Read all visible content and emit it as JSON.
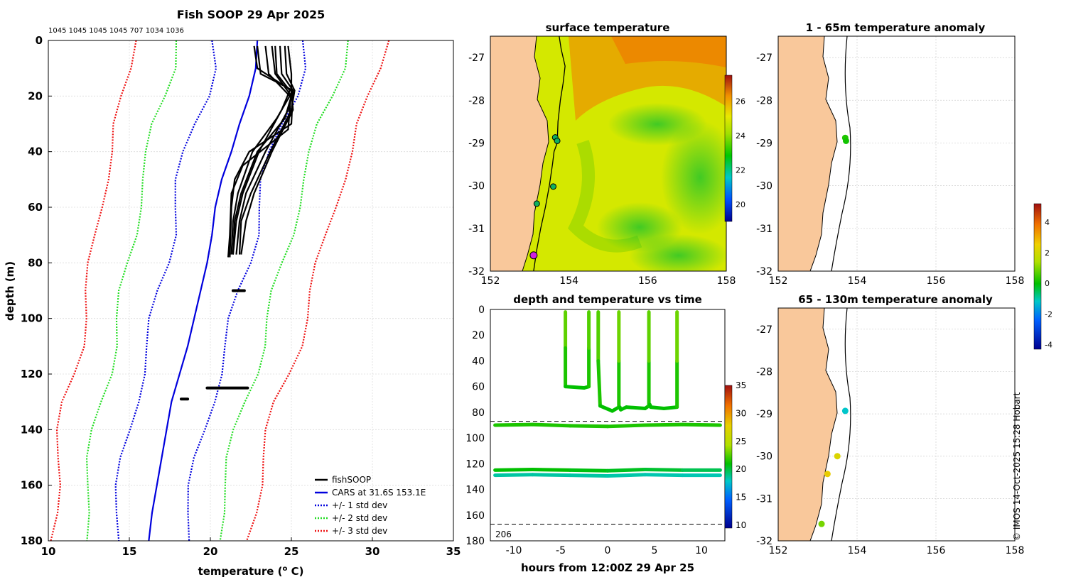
{
  "page_title": "Fish SOOP 29 Apr 2025",
  "profile_ids": "1045 1045 1045 1045 707 1034 1036",
  "copyright": "© IMOS 14-Oct-2025 15:28 Hobart",
  "colors": {
    "fish": "#000000",
    "cars": "#0000dd",
    "std1": "#0000dd",
    "std2": "#22dd22",
    "std3": "#ee1111",
    "land": "#f9c89b",
    "coast": "#000000"
  },
  "chart_data": [
    {
      "id": "profile",
      "type": "line",
      "title": "Fish SOOP 29 Apr 2025",
      "xlabel": "temperature (o C)",
      "ylabel": "depth (m)",
      "xlim": [
        10,
        35
      ],
      "ylim": [
        0,
        180
      ],
      "xticks": [
        10,
        15,
        20,
        25,
        30,
        35
      ],
      "yticks": [
        0,
        20,
        40,
        60,
        80,
        100,
        120,
        140,
        160,
        180
      ],
      "grid": true,
      "legend": {
        "position": "bottom-right",
        "entries": [
          "fishSOOP",
          "CARS at 31.6S 153.1E",
          "+/- 1 std dev",
          "+/- 2 std dev",
          "+/- 3 std dev"
        ]
      },
      "cars": {
        "depth": [
          0,
          10,
          20,
          30,
          40,
          50,
          60,
          70,
          80,
          90,
          100,
          110,
          120,
          130,
          140,
          150,
          160,
          170,
          180
        ],
        "temp": [
          22.9,
          22.8,
          22.4,
          21.8,
          21.3,
          20.7,
          20.3,
          20.1,
          19.8,
          19.4,
          19.0,
          18.6,
          18.1,
          17.6,
          17.3,
          17.0,
          16.7,
          16.4,
          16.2
        ]
      },
      "std_offset": [
        2.8,
        5.3,
        7.8
      ],
      "fish_profiles": [
        {
          "depth": [
            2,
            12,
            18,
            25,
            40,
            55,
            65,
            77
          ],
          "temp": [
            24.0,
            24.1,
            24.9,
            24.4,
            23.0,
            22.0,
            21.6,
            21.4
          ]
        },
        {
          "depth": [
            2,
            12,
            18,
            25,
            40,
            55,
            65,
            77
          ],
          "temp": [
            24.3,
            24.4,
            25.1,
            24.8,
            23.4,
            22.2,
            21.8,
            21.6
          ]
        },
        {
          "depth": [
            2,
            12,
            18,
            25,
            40,
            55,
            65,
            77
          ],
          "temp": [
            24.6,
            24.7,
            25.2,
            25.0,
            23.7,
            22.5,
            21.9,
            21.8
          ]
        },
        {
          "depth": [
            2,
            12,
            18,
            25,
            40,
            55,
            65,
            77
          ],
          "temp": [
            24.8,
            25.0,
            25.0,
            25.1,
            23.8,
            22.7,
            22.2,
            21.9
          ]
        },
        {
          "depth": [
            2,
            12,
            20,
            28,
            40,
            55,
            65,
            77
          ],
          "temp": [
            23.4,
            23.6,
            24.9,
            24.1,
            22.6,
            21.7,
            21.4,
            21.3
          ]
        },
        {
          "depth": [
            2,
            12,
            20,
            28,
            40,
            55,
            65,
            77
          ],
          "temp": [
            23.8,
            24.0,
            25.0,
            24.6,
            22.9,
            21.9,
            21.5,
            21.4
          ]
        },
        {
          "depth": [
            2,
            12,
            18,
            30,
            40,
            50,
            60,
            78
          ],
          "temp": [
            22.9,
            23.1,
            25.1,
            25.0,
            22.4,
            21.5,
            21.3,
            21.2
          ]
        },
        {
          "depth": [
            2,
            10,
            18,
            32,
            45,
            55,
            70,
            78
          ],
          "temp": [
            22.7,
            22.9,
            25.0,
            24.8,
            22.0,
            21.3,
            21.2,
            21.1
          ]
        }
      ],
      "fish_blobs": [
        {
          "depth": 90,
          "t0": 21.4,
          "t1": 22.1
        },
        {
          "depth": 125,
          "t0": 19.8,
          "t1": 22.3
        },
        {
          "depth": 129,
          "t0": 18.2,
          "t1": 18.6
        }
      ]
    },
    {
      "id": "sst",
      "type": "heatmap",
      "title": "surface temperature",
      "xlim": [
        152,
        158
      ],
      "ylim": [
        -32,
        -26.5
      ],
      "xticks": [
        152,
        154,
        156,
        158
      ],
      "yticks": [
        -27,
        -28,
        -29,
        -30,
        -31,
        -32
      ],
      "colorbar": {
        "min": 19,
        "max": 27.5,
        "ticks": [
          20,
          22,
          24,
          26
        ]
      },
      "track": {
        "lon": [
          153.1,
          153.18,
          153.28,
          153.4,
          153.5,
          153.58,
          153.62,
          153.7,
          153.72,
          153.78,
          153.85,
          153.9,
          153.8,
          153.75
        ],
        "lat": [
          -32,
          -31.5,
          -31.0,
          -30.5,
          -30.0,
          -29.5,
          -29.2,
          -29.0,
          -28.5,
          -28.0,
          -27.6,
          -27.2,
          -26.8,
          -26.5
        ]
      },
      "markers": [
        {
          "lon": 153.1,
          "lat": -31.63,
          "label": "magenta"
        },
        {
          "lon": 153.18,
          "lat": -30.42
        },
        {
          "lon": 153.6,
          "lat": -30.02
        },
        {
          "lon": 153.65,
          "lat": -28.87
        },
        {
          "lon": 153.7,
          "lat": -28.95
        }
      ]
    },
    {
      "id": "anomaly_shallow",
      "type": "scatter",
      "title": "1 - 65m temperature anomaly",
      "xlim": [
        152,
        158
      ],
      "ylim": [
        -32,
        -26.5
      ],
      "xticks": [
        152,
        154,
        156,
        158
      ],
      "yticks": [
        -27,
        -28,
        -29,
        -30,
        -31,
        -32
      ],
      "points": [
        {
          "lon": 153.7,
          "lat": -28.88,
          "anomaly": 0.2
        },
        {
          "lon": 153.72,
          "lat": -28.95,
          "anomaly": 0.1
        }
      ]
    },
    {
      "id": "anomaly_deep",
      "type": "scatter",
      "title": "65 - 130m temperature anomaly",
      "xlim": [
        152,
        158
      ],
      "ylim": [
        -32,
        -26.5
      ],
      "xticks": [
        152,
        154,
        156,
        158
      ],
      "yticks": [
        -27,
        -28,
        -29,
        -30,
        -31,
        -32
      ],
      "points": [
        {
          "lon": 153.7,
          "lat": -28.93,
          "anomaly": -1.2
        },
        {
          "lon": 153.5,
          "lat": -30.0,
          "anomaly": 2.2
        },
        {
          "lon": 153.25,
          "lat": -30.42,
          "anomaly": 2.6
        },
        {
          "lon": 153.1,
          "lat": -31.6,
          "anomaly": 0.8
        }
      ],
      "colorbar": {
        "min": -4.3,
        "max": 5.2,
        "ticks": [
          -4,
          -2,
          0,
          2,
          4
        ]
      }
    },
    {
      "id": "time_depth",
      "type": "scatter",
      "title": "depth and temperature vs time",
      "xlabel": "hours from 12:00Z 29 Apr 25",
      "xlim": [
        -12.5,
        12.5
      ],
      "ylim": [
        0,
        180
      ],
      "xticks": [
        -10,
        -5,
        0,
        5,
        10
      ],
      "yticks": [
        0,
        20,
        40,
        60,
        80,
        100,
        120,
        140,
        160,
        180
      ],
      "dashed_lines": [
        87,
        167
      ],
      "annotation": "206",
      "colorbar": {
        "min": 9.5,
        "max": 35,
        "ticks": [
          10,
          15,
          20,
          25,
          30,
          35
        ]
      },
      "series": [
        {
          "name": "dive-1",
          "t": [
            -4.5,
            -4.5,
            -4.5,
            -2.5,
            -2.0,
            -2.0,
            -2.0
          ],
          "depth": [
            2,
            30,
            60,
            61,
            60,
            30,
            2
          ],
          "temp": [
            23.5,
            22,
            21,
            21,
            21,
            22,
            23
          ]
        },
        {
          "name": "dive-2",
          "t": [
            -1.0,
            -1.0,
            -0.8,
            0.5,
            1.2,
            1.2,
            1.2
          ],
          "depth": [
            2,
            40,
            75,
            79,
            76,
            40,
            2
          ],
          "temp": [
            23,
            22,
            21,
            21,
            21,
            22,
            24
          ]
        },
        {
          "name": "dive-3",
          "t": [
            1.3,
            1.4,
            2.0,
            4.0,
            4.4,
            4.4,
            4.4
          ],
          "depth": [
            76,
            78,
            76,
            77,
            75,
            40,
            2
          ],
          "temp": [
            21,
            21,
            21,
            21,
            21,
            22,
            23.5
          ]
        },
        {
          "name": "dive-4",
          "t": [
            4.5,
            4.6,
            6.0,
            7.4,
            7.4,
            7.4
          ],
          "depth": [
            74,
            76,
            77,
            76,
            40,
            2
          ],
          "temp": [
            21,
            21,
            21,
            21,
            22,
            24
          ]
        },
        {
          "name": "moored-90",
          "t": [
            -12,
            -8,
            -4,
            0,
            4,
            8,
            12
          ],
          "depth": [
            90,
            89.5,
            90.5,
            91,
            90,
            89.5,
            90
          ],
          "temp": [
            21.5,
            21.5,
            21.5,
            21.5,
            21.5,
            21.5,
            21.5
          ]
        },
        {
          "name": "moored-125",
          "t": [
            -12,
            -8,
            -4,
            0,
            4,
            8,
            12
          ],
          "depth": [
            125,
            124.5,
            125,
            125.5,
            124.5,
            125,
            125
          ],
          "temp": [
            21,
            21,
            21,
            20.5,
            20.5,
            20,
            19.5
          ]
        },
        {
          "name": "moored-129",
          "t": [
            -12,
            -8,
            -4,
            0,
            4,
            8,
            12
          ],
          "depth": [
            129,
            128.5,
            129,
            129.5,
            128.5,
            129,
            129
          ],
          "temp": [
            18.5,
            18.5,
            18.5,
            18.5,
            18.3,
            18.3,
            18.2
          ]
        }
      ]
    }
  ]
}
